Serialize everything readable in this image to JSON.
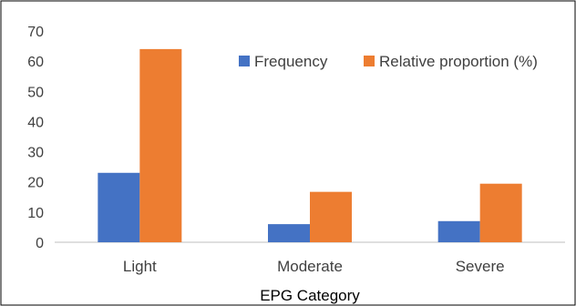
{
  "chart_data": {
    "type": "bar",
    "categories": [
      "Light",
      "Moderate",
      "Severe"
    ],
    "series": [
      {
        "name": "Frequency",
        "values": [
          23,
          6,
          7
        ],
        "color": "#4472C4"
      },
      {
        "name": "Relative proportion (%)",
        "values": [
          64,
          16.7,
          19.4
        ],
        "color": "#ED7D31"
      }
    ],
    "title": "",
    "xlabel": "EPG Category",
    "ylabel": "",
    "ylim": [
      0,
      70
    ],
    "yticks": [
      "0",
      "10",
      "20",
      "30",
      "40",
      "50",
      "60",
      "70"
    ],
    "grid": false,
    "legend_position": "top-right"
  }
}
